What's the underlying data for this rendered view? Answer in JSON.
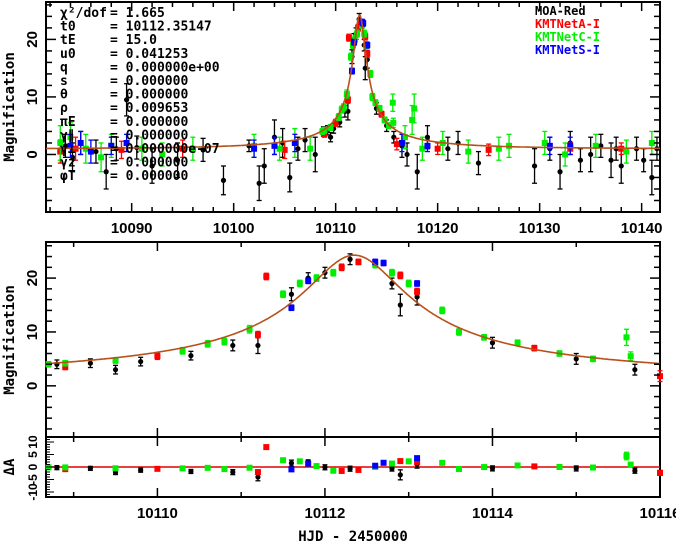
{
  "chart_data": {
    "type": "scatter",
    "title": "",
    "xlabel": "HJD - 2450000",
    "ylabel": "Magnification",
    "residual_ylabel": "ΔA",
    "model": {
      "t0": 10112.35,
      "tE": 15.0,
      "u0": 0.041253,
      "color": "#b8501a",
      "residual_color": "#e00000"
    },
    "panels": {
      "top": {
        "xlim": [
          10081.6,
          10141.8
        ],
        "ylim": [
          -10,
          26.5
        ],
        "xticks": [
          "10090",
          "10100",
          "10110",
          "10120",
          "10130",
          "10140"
        ],
        "yticks": [
          "0",
          "10",
          "20"
        ]
      },
      "bottom": {
        "xlim": [
          10108.67,
          10116.0
        ],
        "ylim": [
          -9.5,
          26.7
        ],
        "xticks": [
          "10110",
          "10112",
          "10114",
          "10116"
        ],
        "yticks": [
          "0",
          "10",
          "20"
        ]
      },
      "residual": {
        "ylim": [
          -12,
          12
        ],
        "yticks": [
          "-10",
          "-5",
          "0",
          "5",
          "10"
        ]
      }
    },
    "params": [
      {
        "label": "χ²/dof",
        "value": "= 1.665"
      },
      {
        "label": "t0",
        "value": "= 10112.35147"
      },
      {
        "label": "tE",
        "value": "= 15.0"
      },
      {
        "label": "u0",
        "value": "= 0.041253"
      },
      {
        "label": "q",
        "value": "= 0.000000e+00"
      },
      {
        "label": "s",
        "value": "= 0.000000"
      },
      {
        "label": "θ",
        "value": "= 0.000000"
      },
      {
        "label": "ρ",
        "value": "= 0.009653"
      },
      {
        "label": "πE",
        "value": "= 0.000000"
      },
      {
        "label": "γ∥",
        "value": "= 0.000000"
      },
      {
        "label": "γ⊥",
        "value": "= 0.000000e-07"
      },
      {
        "label": "γz",
        "value": "= 0.000000"
      },
      {
        "label": "φT",
        "value": "= 0.000000"
      }
    ],
    "series": [
      {
        "name": "MOA-Red",
        "color": "#000000",
        "points": [
          [
            10083.5,
            1.5,
            2
          ],
          [
            10084.2,
            -0.5,
            2.5
          ],
          [
            10085,
            2,
            2
          ],
          [
            10086.5,
            0.5,
            2
          ],
          [
            10087.5,
            -3,
            3
          ],
          [
            10088.5,
            1,
            2
          ],
          [
            10089.5,
            9.5,
            2.8
          ],
          [
            10090.5,
            1.2,
            2
          ],
          [
            10092,
            -2,
            3
          ],
          [
            10094.5,
            -1,
            3
          ],
          [
            10097,
            0.8,
            2
          ],
          [
            10099,
            -4.5,
            2.5
          ],
          [
            10101.5,
            1.5,
            1
          ],
          [
            10102.5,
            -5,
            3
          ],
          [
            10103,
            -2,
            3
          ],
          [
            10104,
            3,
            3
          ],
          [
            10104.8,
            2,
            2.5
          ],
          [
            10105.5,
            -4,
            2.5
          ],
          [
            10106.3,
            1,
            2
          ],
          [
            10107,
            2.5,
            2
          ],
          [
            10108,
            0,
            3
          ],
          [
            10108.8,
            4,
            0.8
          ],
          [
            10109.2,
            4.2,
            0.8
          ],
          [
            10109.5,
            3,
            0.8
          ],
          [
            10109.8,
            4.5,
            0.8
          ],
          [
            10110.4,
            5.6,
            0.8
          ],
          [
            10110.9,
            7.5,
            1
          ],
          [
            10111.2,
            7.5,
            1.5
          ],
          [
            10111.6,
            17,
            1.2
          ],
          [
            10111.8,
            20,
            1
          ],
          [
            10112,
            21,
            1
          ],
          [
            10112.3,
            23.5,
            1
          ],
          [
            10112.8,
            19,
            1
          ],
          [
            10112.9,
            15,
            2
          ],
          [
            10113.1,
            16.5,
            1.5
          ],
          [
            10114,
            8,
            1
          ],
          [
            10115,
            5,
            1
          ],
          [
            10115.7,
            3,
            1
          ],
          [
            10116.5,
            1.5,
            2
          ],
          [
            10117,
            0,
            2
          ],
          [
            10118,
            -3,
            3
          ],
          [
            10119,
            3,
            2
          ],
          [
            10121,
            1,
            2
          ],
          [
            10122,
            2,
            2
          ],
          [
            10124,
            -1.5,
            2
          ],
          [
            10129.5,
            -2,
            3
          ],
          [
            10131,
            1,
            2
          ],
          [
            10132,
            -3,
            3
          ],
          [
            10133,
            2,
            2
          ],
          [
            10134,
            -1,
            2
          ],
          [
            10135,
            0,
            3
          ],
          [
            10136,
            1.5,
            2
          ],
          [
            10137,
            -1,
            3
          ],
          [
            10137.5,
            1,
            2
          ],
          [
            10138,
            -2,
            3
          ],
          [
            10139.5,
            1,
            2
          ],
          [
            10140.2,
            -1,
            2
          ],
          [
            10141,
            -4,
            3
          ],
          [
            10141.5,
            1,
            2
          ]
        ]
      },
      {
        "name": "KMTNetA-I",
        "color": "#ff0000",
        "points": [
          [
            10083,
            0.5,
            2
          ],
          [
            10084.5,
            1,
            2
          ],
          [
            10089,
            0.8,
            1.5
          ],
          [
            10095,
            1,
            1.5
          ],
          [
            10105,
            0.8,
            1.5
          ],
          [
            10108.9,
            3.5,
            0.5
          ],
          [
            10110,
            5.5,
            0.6
          ],
          [
            10111.2,
            9.5,
            0.6
          ],
          [
            10111.3,
            20.3,
            0.6
          ],
          [
            10112.2,
            22,
            0.6
          ],
          [
            10112.4,
            23,
            0.5
          ],
          [
            10112.9,
            20.5,
            0.6
          ],
          [
            10113.1,
            17.5,
            0.6
          ],
          [
            10114.5,
            7,
            0.5
          ],
          [
            10116,
            1.8,
            1
          ],
          [
            10120,
            1,
            1
          ],
          [
            10125,
            0.8,
            1
          ],
          [
            10133,
            1,
            1
          ],
          [
            10138,
            1,
            1
          ]
        ]
      },
      {
        "name": "KMTNetC-I",
        "color": "#00ee00",
        "points": [
          [
            10083,
            2,
            3
          ],
          [
            10084,
            3,
            2.5
          ],
          [
            10085.5,
            1,
            2.5
          ],
          [
            10087,
            -0.5,
            2.5
          ],
          [
            10088,
            1.5,
            2
          ],
          [
            10091,
            1,
            2
          ],
          [
            10093,
            0,
            2
          ],
          [
            10096,
            1,
            2
          ],
          [
            10102,
            1.5,
            2
          ],
          [
            10104.5,
            1,
            2
          ],
          [
            10106,
            2,
            2.5
          ],
          [
            10107.5,
            1,
            2
          ],
          [
            10108.7,
            4,
            0.5
          ],
          [
            10108.9,
            4.2,
            0.5
          ],
          [
            10109.5,
            4.7,
            0.5
          ],
          [
            10110.3,
            6.5,
            0.6
          ],
          [
            10110.6,
            7.8,
            0.6
          ],
          [
            10110.8,
            8.2,
            0.6
          ],
          [
            10111.1,
            10.5,
            0.7
          ],
          [
            10111.5,
            17,
            0.6
          ],
          [
            10111.7,
            19,
            0.6
          ],
          [
            10111.9,
            20,
            0.6
          ],
          [
            10112.1,
            21,
            0.6
          ],
          [
            10112.6,
            22.5,
            0.6
          ],
          [
            10112.8,
            21,
            0.6
          ],
          [
            10113.0,
            19,
            0.6
          ],
          [
            10113.4,
            14,
            0.6
          ],
          [
            10113.6,
            10,
            0.6
          ],
          [
            10113.9,
            9,
            0.5
          ],
          [
            10114.3,
            8,
            0.5
          ],
          [
            10114.8,
            6,
            0.5
          ],
          [
            10115.2,
            5,
            0.5
          ],
          [
            10115.6,
            9,
            1.5
          ],
          [
            10115.65,
            5.5,
            0.8
          ],
          [
            10116.8,
            3,
            2
          ],
          [
            10117.5,
            6,
            2.5
          ],
          [
            10117.7,
            8,
            2.5
          ],
          [
            10118.5,
            1,
            2
          ],
          [
            10120.5,
            2,
            2
          ],
          [
            10123,
            0.5,
            2
          ],
          [
            10126,
            1,
            2
          ],
          [
            10127,
            1.5,
            2
          ],
          [
            10130.5,
            2,
            2
          ],
          [
            10132.5,
            0,
            2
          ],
          [
            10135.5,
            1.5,
            2
          ],
          [
            10138.5,
            0.5,
            2
          ],
          [
            10141,
            2,
            2
          ]
        ]
      },
      {
        "name": "KMTNetS-I",
        "color": "#0000ff",
        "points": [
          [
            10084,
            1.5,
            2
          ],
          [
            10085,
            2,
            2
          ],
          [
            10086,
            0.5,
            2
          ],
          [
            10088,
            1.5,
            1.5
          ],
          [
            10089.5,
            2,
            1.5
          ],
          [
            10102,
            1,
            1.5
          ],
          [
            10104,
            1.5,
            1.5
          ],
          [
            10106,
            2,
            1.5
          ],
          [
            10111.6,
            14.5,
            0.5
          ],
          [
            10111.8,
            19.5,
            0.5
          ],
          [
            10112.6,
            23,
            0.5
          ],
          [
            10112.7,
            22.8,
            0.5
          ],
          [
            10113.1,
            19,
            0.5
          ],
          [
            10116.5,
            2,
            1.5
          ],
          [
            10119,
            1.5,
            1
          ],
          [
            10131,
            1.5,
            1.5
          ],
          [
            10133,
            1.5,
            1.5
          ]
        ]
      }
    ]
  }
}
